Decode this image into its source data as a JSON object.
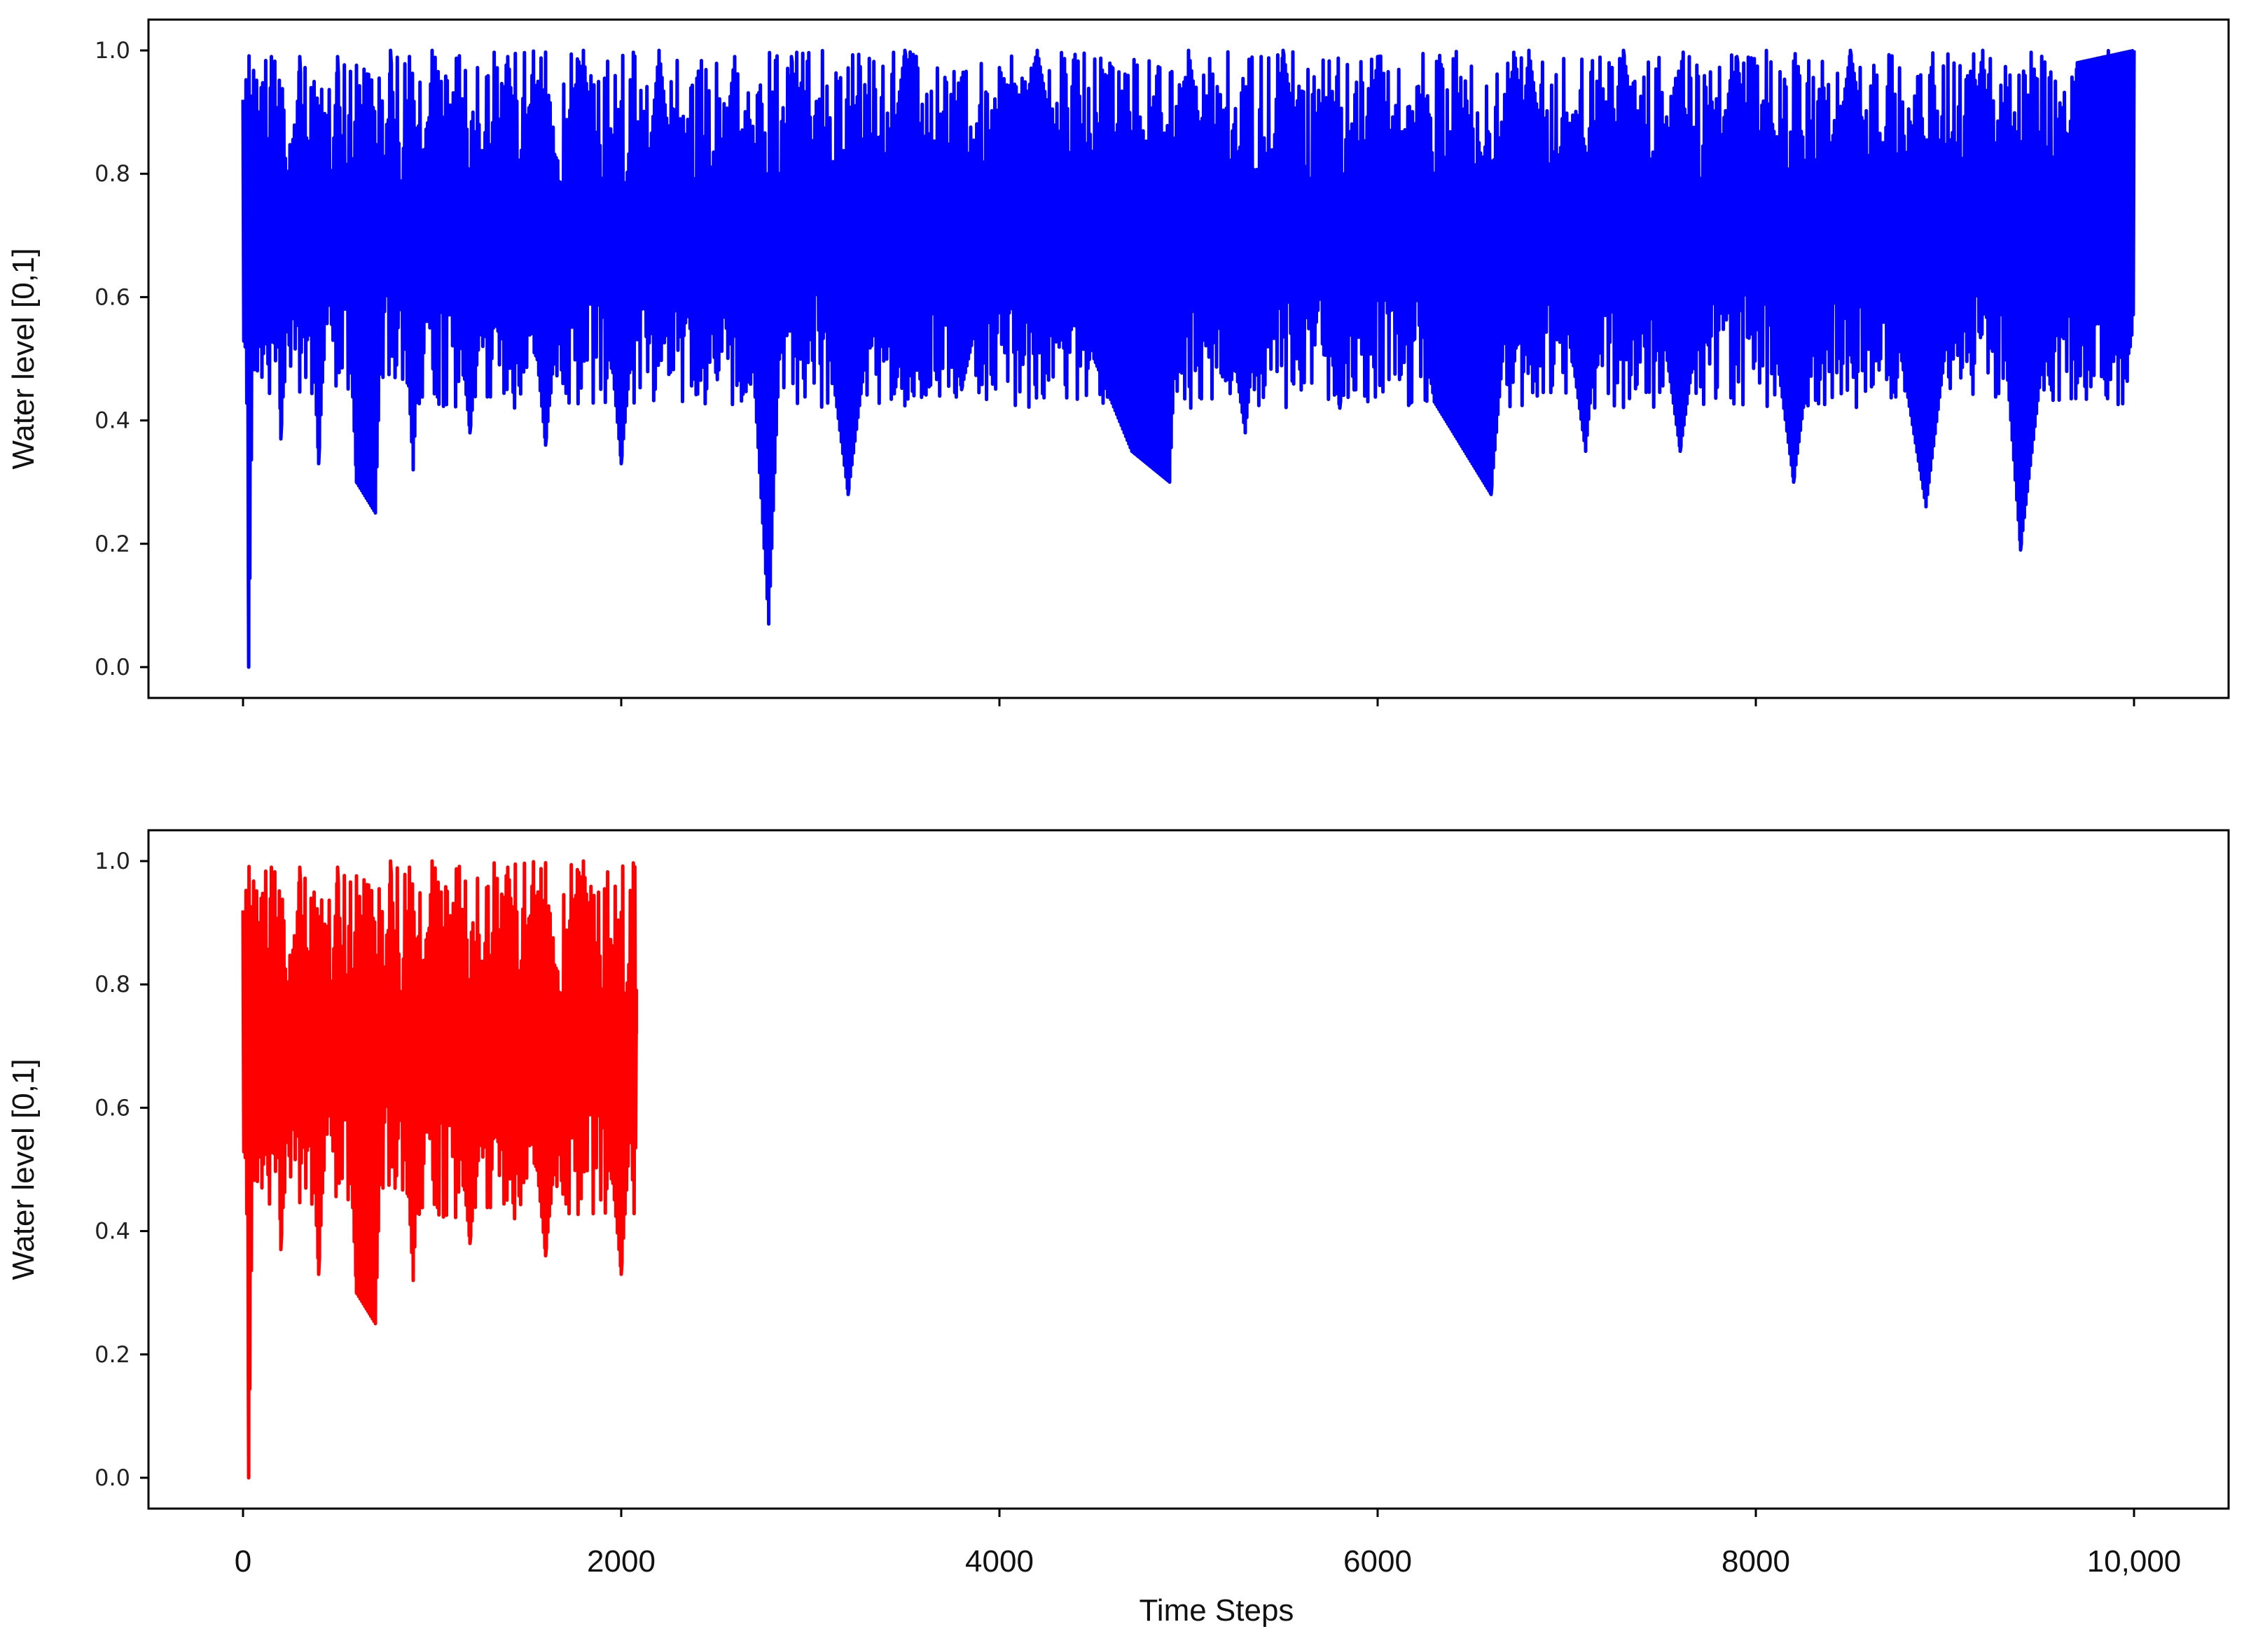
{
  "chart_data": [
    {
      "type": "line",
      "panel": "top",
      "xlabel": "",
      "ylabel": "Water level [0,1]",
      "xlim": [
        -500,
        10500
      ],
      "ylim": [
        -0.05,
        1.05
      ],
      "xticks": [
        0,
        2000,
        4000,
        6000,
        8000,
        10000
      ],
      "xtick_labels": [],
      "yticks": [
        0.0,
        0.2,
        0.4,
        0.6,
        0.8,
        1.0
      ],
      "ytick_labels": [
        "0.0",
        "0.2",
        "0.4",
        "0.6",
        "0.8",
        "1.0"
      ],
      "grid": false,
      "series": [
        {
          "color": "#0000ff",
          "x_start": 0,
          "x_end": 10000,
          "summary_points": [
            [
              0,
              0.92
            ],
            [
              20,
              0.82
            ],
            [
              30,
              0.0
            ],
            [
              60,
              0.72
            ],
            [
              100,
              0.47
            ],
            [
              150,
              0.99
            ],
            [
              200,
              0.37
            ],
            [
              300,
              0.99
            ],
            [
              400,
              0.33
            ],
            [
              500,
              0.99
            ],
            [
              600,
              0.3
            ],
            [
              700,
              0.25
            ],
            [
              780,
              1.0
            ],
            [
              900,
              0.32
            ],
            [
              1000,
              1.0
            ],
            [
              1200,
              0.38
            ],
            [
              1400,
              0.99
            ],
            [
              1600,
              0.36
            ],
            [
              1800,
              1.0
            ],
            [
              2000,
              0.33
            ],
            [
              2200,
              1.0
            ],
            [
              2400,
              0.45
            ],
            [
              2600,
              0.99
            ],
            [
              2780,
              0.07
            ],
            [
              2900,
              0.99
            ],
            [
              3200,
              0.28
            ],
            [
              3500,
              1.0
            ],
            [
              3800,
              0.45
            ],
            [
              4200,
              1.0
            ],
            [
              4500,
              0.5
            ],
            [
              4700,
              0.35
            ],
            [
              4900,
              0.3
            ],
            [
              5000,
              1.0
            ],
            [
              5300,
              0.38
            ],
            [
              5500,
              1.0
            ],
            [
              5800,
              0.42
            ],
            [
              6000,
              0.99
            ],
            [
              6300,
              0.43
            ],
            [
              6600,
              0.28
            ],
            [
              6800,
              1.0
            ],
            [
              7100,
              0.35
            ],
            [
              7300,
              1.0
            ],
            [
              7600,
              0.35
            ],
            [
              7900,
              0.99
            ],
            [
              8200,
              0.3
            ],
            [
              8500,
              1.0
            ],
            [
              8900,
              0.26
            ],
            [
              9200,
              1.0
            ],
            [
              9400,
              0.19
            ],
            [
              9700,
              0.98
            ],
            [
              10000,
              1.0
            ]
          ]
        }
      ]
    },
    {
      "type": "line",
      "panel": "bottom",
      "xlabel": "Time Steps",
      "ylabel": "Water level [0,1]",
      "xlim": [
        -500,
        10500
      ],
      "ylim": [
        -0.05,
        1.05
      ],
      "xticks": [
        0,
        2000,
        4000,
        6000,
        8000,
        10000
      ],
      "xtick_labels": [
        "0",
        "2000",
        "4000",
        "6000",
        "8000",
        "10,000"
      ],
      "yticks": [
        0.0,
        0.2,
        0.4,
        0.6,
        0.8,
        1.0
      ],
      "ytick_labels": [
        "0.0",
        "0.2",
        "0.4",
        "0.6",
        "0.8",
        "1.0"
      ],
      "grid": false,
      "series": [
        {
          "color": "#ff0000",
          "x_start": 0,
          "x_end": 2080,
          "summary_points": [
            [
              0,
              0.92
            ],
            [
              20,
              0.82
            ],
            [
              30,
              0.0
            ],
            [
              60,
              0.72
            ],
            [
              100,
              0.47
            ],
            [
              150,
              0.99
            ],
            [
              200,
              0.37
            ],
            [
              300,
              0.99
            ],
            [
              400,
              0.33
            ],
            [
              500,
              0.99
            ],
            [
              600,
              0.3
            ],
            [
              700,
              0.25
            ],
            [
              780,
              1.0
            ],
            [
              900,
              0.32
            ],
            [
              1000,
              1.0
            ],
            [
              1200,
              0.38
            ],
            [
              1400,
              0.99
            ],
            [
              1600,
              0.36
            ],
            [
              1800,
              1.0
            ],
            [
              2000,
              0.33
            ],
            [
              2080,
              0.72
            ]
          ]
        }
      ]
    }
  ]
}
